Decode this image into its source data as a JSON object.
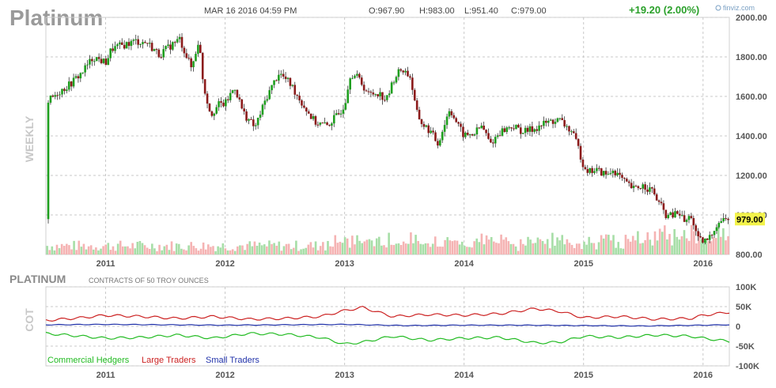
{
  "header": {
    "title": "Platinum",
    "datetime": "MAR 16 2016 04:59 PM",
    "open": "O:967.90",
    "high": "H:983.00",
    "low": "L:951.40",
    "close": "C:979.00",
    "change": "+19.20 (2.00%)",
    "brand": "finviz.com",
    "brand_icon": "finviz-logo-icon"
  },
  "chart_data": [
    {
      "type": "candlestick",
      "side_label": "WEEKLY",
      "x_tick_labels": [
        "2011",
        "2012",
        "2013",
        "2014",
        "2015",
        "2016"
      ],
      "x_range": [
        2010.5,
        2016.22
      ],
      "y_tick_labels": [
        "2000.00",
        "1800.00",
        "1600.00",
        "1400.00",
        "1200.00",
        "1000.00",
        "800.00"
      ],
      "ylim": [
        800,
        2000
      ],
      "last_price_label": "979.00",
      "close_path": [
        [
          2010.52,
          1575
        ],
        [
          2010.6,
          1620
        ],
        [
          2010.7,
          1660
        ],
        [
          2010.8,
          1720
        ],
        [
          2010.9,
          1800
        ],
        [
          2011.0,
          1770
        ],
        [
          2011.05,
          1840
        ],
        [
          2011.15,
          1860
        ],
        [
          2011.25,
          1880
        ],
        [
          2011.35,
          1870
        ],
        [
          2011.45,
          1810
        ],
        [
          2011.55,
          1860
        ],
        [
          2011.62,
          1890
        ],
        [
          2011.68,
          1800
        ],
        [
          2011.72,
          1740
        ],
        [
          2011.78,
          1890
        ],
        [
          2011.82,
          1650
        ],
        [
          2011.88,
          1510
        ],
        [
          2011.95,
          1560
        ],
        [
          2012.0,
          1560
        ],
        [
          2012.08,
          1650
        ],
        [
          2012.15,
          1520
        ],
        [
          2012.25,
          1440
        ],
        [
          2012.35,
          1600
        ],
        [
          2012.45,
          1720
        ],
        [
          2012.55,
          1660
        ],
        [
          2012.65,
          1560
        ],
        [
          2012.75,
          1470
        ],
        [
          2012.85,
          1450
        ],
        [
          2012.95,
          1510
        ],
        [
          2013.0,
          1560
        ],
        [
          2013.05,
          1720
        ],
        [
          2013.12,
          1690
        ],
        [
          2013.2,
          1610
        ],
        [
          2013.28,
          1620
        ],
        [
          2013.35,
          1580
        ],
        [
          2013.42,
          1700
        ],
        [
          2013.48,
          1740
        ],
        [
          2013.55,
          1700
        ],
        [
          2013.6,
          1520
        ],
        [
          2013.65,
          1460
        ],
        [
          2013.72,
          1420
        ],
        [
          2013.78,
          1360
        ],
        [
          2013.82,
          1430
        ],
        [
          2013.88,
          1540
        ],
        [
          2013.95,
          1450
        ],
        [
          2014.0,
          1400
        ],
        [
          2014.08,
          1410
        ],
        [
          2014.15,
          1450
        ],
        [
          2014.22,
          1360
        ],
        [
          2014.3,
          1420
        ],
        [
          2014.4,
          1450
        ],
        [
          2014.5,
          1420
        ],
        [
          2014.6,
          1440
        ],
        [
          2014.7,
          1470
        ],
        [
          2014.8,
          1480
        ],
        [
          2014.85,
          1450
        ],
        [
          2014.9,
          1420
        ],
        [
          2014.95,
          1350
        ],
        [
          2015.0,
          1250
        ],
        [
          2015.05,
          1220
        ],
        [
          2015.1,
          1230
        ],
        [
          2015.2,
          1200
        ],
        [
          2015.25,
          1230
        ],
        [
          2015.35,
          1160
        ],
        [
          2015.42,
          1130
        ],
        [
          2015.5,
          1150
        ],
        [
          2015.58,
          1120
        ],
        [
          2015.62,
          1070
        ],
        [
          2015.7,
          990
        ],
        [
          2015.8,
          1010
        ],
        [
          2015.85,
          960
        ],
        [
          2015.9,
          1000
        ],
        [
          2015.95,
          880
        ],
        [
          2016.0,
          860
        ],
        [
          2016.05,
          880
        ],
        [
          2016.12,
          960
        ],
        [
          2016.18,
          980
        ],
        [
          2016.21,
          979
        ]
      ],
      "volume_bars": "relative volume bars beneath price, alternating green (up) / pink (down)"
    },
    {
      "type": "line",
      "title": "PLATINUM",
      "subtitle": "CONTRACTS OF 50 TROY OUNCES",
      "side_label": "COT",
      "y_tick_labels": [
        "100K",
        "50K",
        "0",
        "-50K",
        "-100K"
      ],
      "ylim": [
        -100000,
        100000
      ],
      "x_tick_labels": [
        "2011",
        "2012",
        "2013",
        "2014",
        "2015",
        "2016"
      ],
      "series": [
        {
          "name": "Commercial Hedgers",
          "color": "#22bb22",
          "points": [
            [
              2010.5,
              -18000
            ],
            [
              2010.8,
              -25000
            ],
            [
              2011.0,
              -30000
            ],
            [
              2011.3,
              -28000
            ],
            [
              2011.6,
              -22000
            ],
            [
              2011.9,
              -30000
            ],
            [
              2012.2,
              -18000
            ],
            [
              2012.5,
              -20000
            ],
            [
              2012.8,
              -28000
            ],
            [
              2013.0,
              -45000
            ],
            [
              2013.15,
              -40000
            ],
            [
              2013.4,
              -25000
            ],
            [
              2013.7,
              -35000
            ],
            [
              2014.0,
              -30000
            ],
            [
              2014.3,
              -28000
            ],
            [
              2014.6,
              -42000
            ],
            [
              2014.8,
              -40000
            ],
            [
              2015.0,
              -25000
            ],
            [
              2015.3,
              -28000
            ],
            [
              2015.6,
              -22000
            ],
            [
              2015.9,
              -25000
            ],
            [
              2016.0,
              -30000
            ],
            [
              2016.22,
              -38000
            ]
          ]
        },
        {
          "name": "Large Traders",
          "color": "#cc2222",
          "points": [
            [
              2010.5,
              15000
            ],
            [
              2010.8,
              22000
            ],
            [
              2011.0,
              28000
            ],
            [
              2011.3,
              25000
            ],
            [
              2011.6,
              20000
            ],
            [
              2011.9,
              25000
            ],
            [
              2012.2,
              18000
            ],
            [
              2012.5,
              20000
            ],
            [
              2012.8,
              25000
            ],
            [
              2013.0,
              40000
            ],
            [
              2013.15,
              48000
            ],
            [
              2013.4,
              25000
            ],
            [
              2013.7,
              30000
            ],
            [
              2014.0,
              28000
            ],
            [
              2014.3,
              32000
            ],
            [
              2014.6,
              45000
            ],
            [
              2014.8,
              38000
            ],
            [
              2015.0,
              22000
            ],
            [
              2015.3,
              25000
            ],
            [
              2015.6,
              18000
            ],
            [
              2015.9,
              20000
            ],
            [
              2016.0,
              28000
            ],
            [
              2016.22,
              36000
            ]
          ]
        },
        {
          "name": "Small Traders",
          "color": "#2233aa",
          "points": [
            [
              2010.5,
              4000
            ],
            [
              2011.0,
              5000
            ],
            [
              2011.5,
              4000
            ],
            [
              2012.0,
              3000
            ],
            [
              2012.5,
              4000
            ],
            [
              2013.0,
              5000
            ],
            [
              2013.5,
              2000
            ],
            [
              2014.0,
              3000
            ],
            [
              2014.5,
              3000
            ],
            [
              2015.0,
              2000
            ],
            [
              2015.5,
              1000
            ],
            [
              2016.0,
              3000
            ],
            [
              2016.22,
              4000
            ]
          ]
        }
      ]
    }
  ]
}
